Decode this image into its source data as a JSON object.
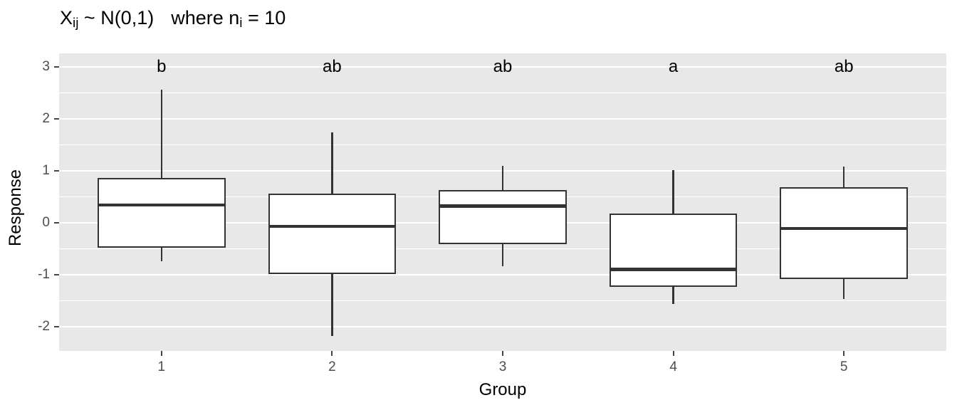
{
  "chart_data": {
    "type": "boxplot",
    "title_text": "X_ij ~ N(0,1)   where n_i = 10",
    "title": {
      "part1": "X",
      "sub1": "ij",
      "part2": " ~ N(0,1)",
      "part3": "where n",
      "sub2": "i",
      "part4": " = 10"
    },
    "xlabel": "Group",
    "ylabel": "Response",
    "x_tick_labels": [
      "1",
      "2",
      "3",
      "4",
      "5"
    ],
    "y_ticks": [
      {
        "value": 3,
        "label": "3"
      },
      {
        "value": 2,
        "label": "2"
      },
      {
        "value": 1,
        "label": "1"
      },
      {
        "value": 0,
        "label": "0"
      },
      {
        "value": -1,
        "label": "-1"
      },
      {
        "value": -2,
        "label": "-2"
      }
    ],
    "y_minor_ticks": [
      2.5,
      1.5,
      0.5,
      -0.5,
      -1.5
    ],
    "ylim": [
      -2.47,
      3.26
    ],
    "xlim": [
      0.4,
      5.6
    ],
    "box_width": 0.75,
    "letter_y": 3.0,
    "grid": true,
    "legend": "none",
    "groups": [
      {
        "x": 1,
        "label": "1",
        "letter": "b",
        "whisker_low": -0.74,
        "q1": -0.48,
        "median": 0.34,
        "q3": 0.86,
        "whisker_high": 2.56
      },
      {
        "x": 2,
        "label": "2",
        "letter": "ab",
        "whisker_low": -2.18,
        "q1": -0.99,
        "median": -0.07,
        "q3": 0.56,
        "whisker_high": 1.74
      },
      {
        "x": 3,
        "label": "3",
        "letter": "ab",
        "whisker_low": -0.84,
        "q1": -0.42,
        "median": 0.32,
        "q3": 0.63,
        "whisker_high": 1.1
      },
      {
        "x": 4,
        "label": "4",
        "letter": "a",
        "whisker_low": -1.56,
        "q1": -1.23,
        "median": -0.9,
        "q3": 0.18,
        "whisker_high": 1.01
      },
      {
        "x": 5,
        "label": "5",
        "letter": "ab",
        "whisker_low": -1.47,
        "q1": -1.08,
        "median": -0.11,
        "q3": 0.68,
        "whisker_high": 1.08
      }
    ],
    "colors": {
      "panel_bg": "#E8E8E8",
      "grid": "#FFFFFF",
      "box_border": "#333333",
      "box_fill": "#FFFFFF",
      "tick_label": "#4D4D4D",
      "text": "#000000"
    }
  }
}
